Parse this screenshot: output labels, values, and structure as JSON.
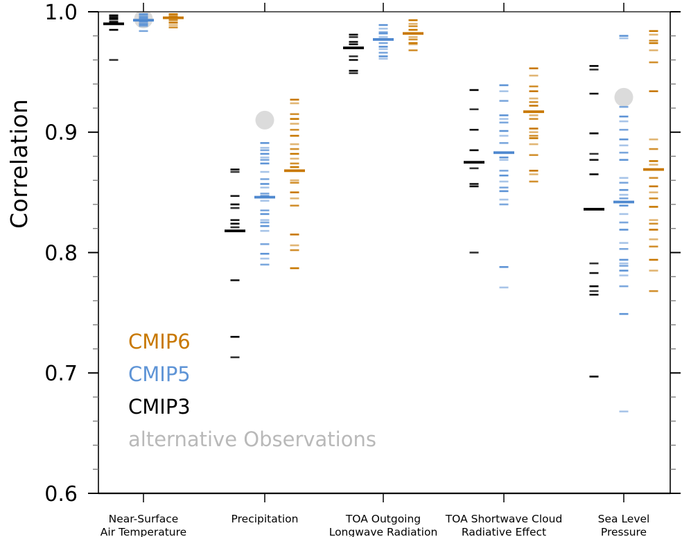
{
  "ylabel": "Correlation",
  "legend": {
    "items": [
      {
        "label": "CMIP6",
        "color": "#C87800"
      },
      {
        "label": "CMIP5",
        "color": "#5E94D6"
      },
      {
        "label": "CMIP3",
        "color": "#000000"
      },
      {
        "label": "alternative Observations",
        "color": "#B9B9B9"
      }
    ]
  },
  "chart_data": {
    "type": "scatter",
    "subtype": "categorical dash-strip plot with ensemble means and alternative observations",
    "title": "",
    "xlabel": "",
    "ylabel": "Correlation",
    "ylim": [
      0.6,
      1.0
    ],
    "y_major_ticks": [
      1.0,
      0.9,
      0.8,
      0.7,
      0.6
    ],
    "y_tick_labels": [
      "1.0",
      "0.9",
      "0.8",
      "0.7",
      "0.6"
    ],
    "y_minor_tick_step": 0.02,
    "grid": false,
    "legend_position": "inside lower-left",
    "categories": [
      {
        "label_lines": [
          "Near-Surface",
          "Air Temperature"
        ]
      },
      {
        "label_lines": [
          "Precipitation"
        ]
      },
      {
        "label_lines": [
          "TOA Outgoing",
          "Longwave Radiation"
        ]
      },
      {
        "label_lines": [
          "TOA Shortwave Cloud",
          "Radiative Effect"
        ]
      },
      {
        "label_lines": [
          "Sea Level",
          "Pressure"
        ]
      }
    ],
    "series": [
      {
        "name": "CMIP3",
        "color": "#000000",
        "mean_color": "#000000",
        "means": [
          0.99,
          0.818,
          0.97,
          0.875,
          0.836
        ],
        "values_by_category": [
          [
            0.997,
            0.996,
            0.995,
            0.994,
            0.992,
            0.991,
            0.985,
            0.96
          ],
          [
            0.869,
            0.867,
            0.847,
            0.84,
            0.837,
            0.827,
            0.824,
            0.821,
            0.777,
            0.73,
            0.713
          ],
          [
            0.981,
            0.979,
            0.975,
            0.973,
            0.963,
            0.96,
            0.951,
            0.949
          ],
          [
            0.935,
            0.919,
            0.902,
            0.885,
            0.87,
            0.857,
            0.855,
            0.8
          ],
          [
            0.955,
            0.952,
            0.932,
            0.899,
            0.882,
            0.877,
            0.865,
            0.791,
            0.783,
            0.772,
            0.768,
            0.765,
            0.697
          ]
        ]
      },
      {
        "name": "CMIP5",
        "color": "#5E94D6",
        "mean_color": "#4E88CF",
        "means": [
          0.993,
          0.846,
          0.977,
          0.883,
          0.842
        ],
        "values_by_category": [
          [
            0.998,
            0.997,
            0.996,
            0.995,
            0.994,
            0.993,
            0.992,
            0.991,
            0.99,
            0.989,
            0.988,
            0.984
          ],
          [
            0.891,
            0.887,
            0.885,
            0.882,
            0.879,
            0.877,
            0.874,
            0.867,
            0.861,
            0.857,
            0.854,
            0.849,
            0.847,
            0.843,
            0.835,
            0.832,
            0.827,
            0.825,
            0.822,
            0.818,
            0.807,
            0.799,
            0.795,
            0.79
          ],
          [
            0.989,
            0.986,
            0.983,
            0.982,
            0.979,
            0.974,
            0.971,
            0.969,
            0.966,
            0.963,
            0.961
          ],
          [
            0.939,
            0.934,
            0.926,
            0.914,
            0.911,
            0.908,
            0.901,
            0.897,
            0.891,
            0.879,
            0.877,
            0.868,
            0.864,
            0.859,
            0.854,
            0.851,
            0.844,
            0.84,
            0.788,
            0.771
          ],
          [
            0.98,
            0.978,
            0.921,
            0.913,
            0.909,
            0.902,
            0.894,
            0.889,
            0.883,
            0.877,
            0.862,
            0.858,
            0.852,
            0.848,
            0.845,
            0.839,
            0.832,
            0.825,
            0.819,
            0.808,
            0.803,
            0.794,
            0.791,
            0.789,
            0.785,
            0.781,
            0.772,
            0.749,
            0.668
          ]
        ]
      },
      {
        "name": "CMIP6",
        "color": "#C87800",
        "mean_color": "#C87800",
        "means": [
          0.995,
          0.868,
          0.982,
          0.917,
          0.869
        ],
        "values_by_category": [
          [
            0.998,
            0.997,
            0.996,
            0.995,
            0.994,
            0.993,
            0.991,
            0.989,
            0.987
          ],
          [
            0.927,
            0.924,
            0.915,
            0.911,
            0.907,
            0.902,
            0.897,
            0.89,
            0.886,
            0.882,
            0.878,
            0.874,
            0.871,
            0.86,
            0.858,
            0.85,
            0.845,
            0.839,
            0.815,
            0.806,
            0.802,
            0.787
          ],
          [
            0.993,
            0.99,
            0.988,
            0.985,
            0.979,
            0.977,
            0.974,
            0.973,
            0.968
          ],
          [
            0.953,
            0.947,
            0.938,
            0.934,
            0.928,
            0.925,
            0.922,
            0.914,
            0.911,
            0.903,
            0.9,
            0.897,
            0.895,
            0.89,
            0.881,
            0.868,
            0.865,
            0.859
          ],
          [
            0.984,
            0.981,
            0.976,
            0.974,
            0.968,
            0.958,
            0.934,
            0.894,
            0.886,
            0.876,
            0.873,
            0.862,
            0.855,
            0.85,
            0.845,
            0.838,
            0.827,
            0.824,
            0.819,
            0.811,
            0.805,
            0.794,
            0.785,
            0.768
          ]
        ]
      }
    ],
    "observations": {
      "name": "alternative Observations",
      "color": "#DBDBDB",
      "values_by_category": [
        0.994,
        0.91,
        null,
        null,
        0.929
      ]
    }
  }
}
